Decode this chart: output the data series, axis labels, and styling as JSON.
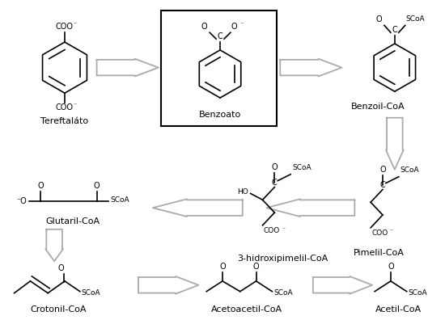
{
  "bg_color": "#ffffff",
  "line_color": "#000000",
  "gray_color": "#888888",
  "lw": 1.2,
  "arrow_lw": 1.3,
  "labels": {
    "tereftalato": "Tereftaláto",
    "benzoato": "Benzoato",
    "benzoil": "Benzoil-CoA",
    "pimelil": "Pimelil-CoA",
    "hidroxi": "3-hidroxipimelil-CoA",
    "glutaril": "Glutaril-CoA",
    "crotonil": "Crotonil-CoA",
    "acetoacetil": "Acetoacetil-CoA",
    "acetil": "Acetil-CoA"
  }
}
